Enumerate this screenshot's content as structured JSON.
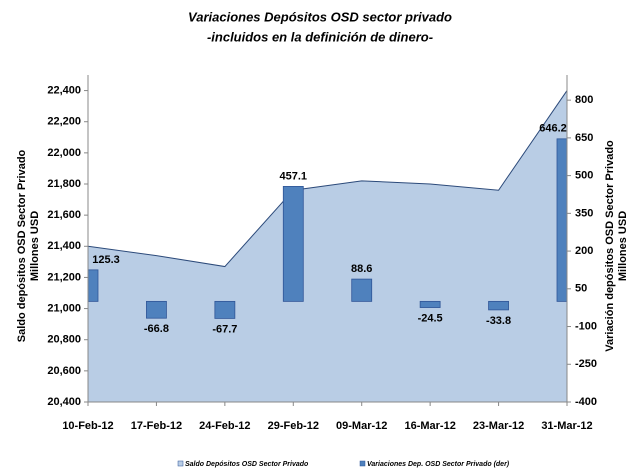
{
  "chart_data": {
    "type": "combo",
    "title": "Variaciones Depósitos OSD sector privado",
    "subtitle": "-incluidos en la definición de dinero-",
    "ylabel": [
      "Saldo depósitos OSD Sector Privado",
      "Millones USD"
    ],
    "y2label": [
      "Variación depósitos OSD Sector Privado",
      "Millones USD"
    ],
    "categories": [
      "10-Feb-12",
      "17-Feb-12",
      "24-Feb-12",
      "29-Feb-12",
      "09-Mar-12",
      "16-Mar-12",
      "23-Mar-12",
      "31-Mar-12"
    ],
    "series": [
      {
        "name": "Saldo Depósitos OSD Sector Privado",
        "type": "area",
        "color": "#b9cde5",
        "values": [
          21400,
          21340,
          21270,
          21760,
          21820,
          21800,
          21760,
          22400
        ]
      },
      {
        "name": "Variaciones Dep. OSD Sector Privado (der)",
        "type": "bar",
        "color": "#4f81bd",
        "axis": "y2",
        "values": [
          125.3,
          -66.8,
          -67.7,
          457.1,
          88.6,
          -24.5,
          -33.8,
          646.2
        ]
      }
    ],
    "ylim": [
      20400,
      22500
    ],
    "yticks": [
      {
        "value": 20400,
        "label": "20,400"
      },
      {
        "value": 20600,
        "label": "20,600"
      },
      {
        "value": 20800,
        "label": "20,800"
      },
      {
        "value": 21000,
        "label": "21,000"
      },
      {
        "value": 21200,
        "label": "21,200"
      },
      {
        "value": 21400,
        "label": "21,400"
      },
      {
        "value": 21600,
        "label": "21,600"
      },
      {
        "value": 21800,
        "label": "21,800"
      },
      {
        "value": 22000,
        "label": "22,000"
      },
      {
        "value": 22200,
        "label": "22,200"
      },
      {
        "value": 22400,
        "label": "22,400"
      }
    ],
    "y2lim": [
      -400,
      900
    ],
    "y2ticks": [
      -400,
      -250,
      -100,
      50,
      200,
      350,
      500,
      650,
      800
    ]
  }
}
